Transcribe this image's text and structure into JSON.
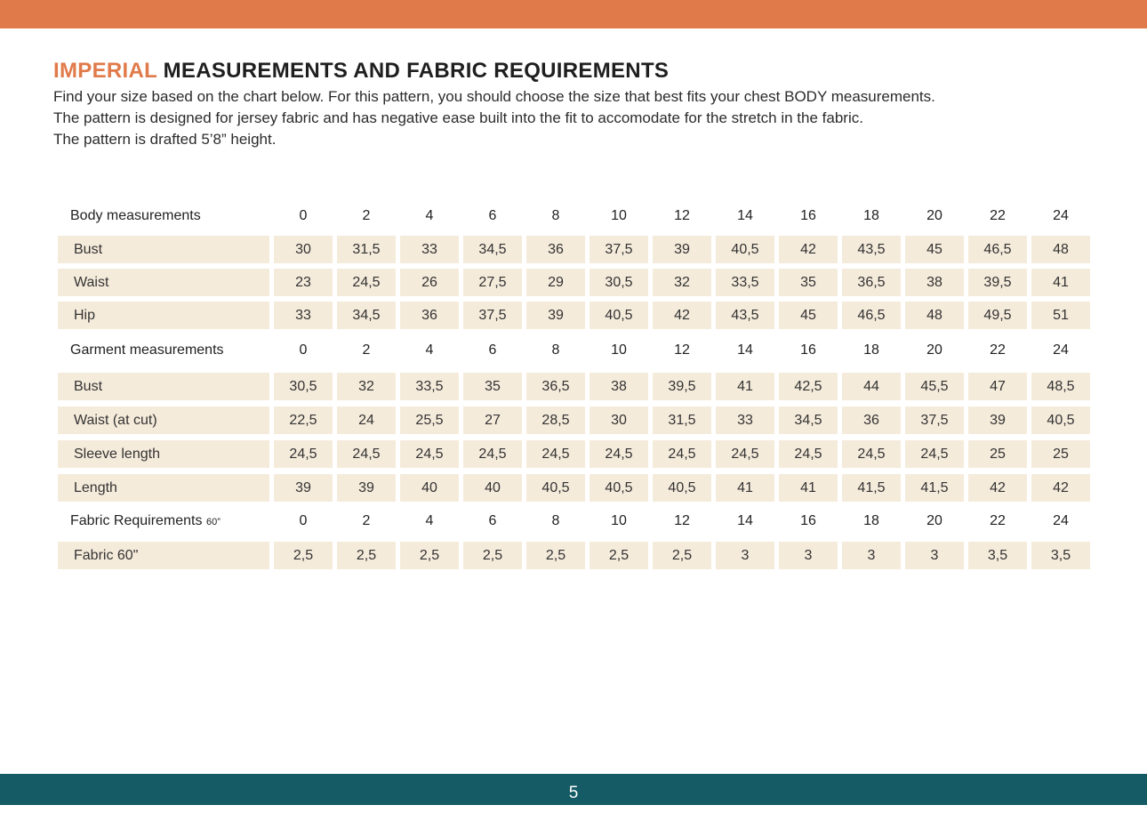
{
  "colors": {
    "top_bar": "#e07a4a",
    "bottom_bar": "#155b66",
    "cell_background": "#f5ebdb",
    "accent": "#e07a4a"
  },
  "title": {
    "accent": "IMPERIAL",
    "rest": " MEASUREMENTS AND FABRIC REQUIREMENTS"
  },
  "intro": [
    "Find your size based on the chart below. For this pattern, you should choose the size that best fits your chest BODY measurements.",
    "The pattern is designed for jersey fabric and has negative ease built into the fit to accomodate for the stretch in the fabric.",
    "The pattern is drafted 5’8” height."
  ],
  "sizes": [
    "0",
    "2",
    "4",
    "6",
    "8",
    "10",
    "12",
    "14",
    "16",
    "18",
    "20",
    "22",
    "24"
  ],
  "sections": [
    {
      "header": "Body measurements",
      "header_suffix": "",
      "rows": [
        {
          "label": "Bust",
          "values": [
            "30",
            "31,5",
            "33",
            "34,5",
            "36",
            "37,5",
            "39",
            "40,5",
            "42",
            "43,5",
            "45",
            "46,5",
            "48"
          ]
        },
        {
          "label": "Waist",
          "values": [
            "23",
            "24,5",
            "26",
            "27,5",
            "29",
            "30,5",
            "32",
            "33,5",
            "35",
            "36,5",
            "38",
            "39,5",
            "41"
          ]
        },
        {
          "label": "Hip",
          "values": [
            "33",
            "34,5",
            "36",
            "37,5",
            "39",
            "40,5",
            "42",
            "43,5",
            "45",
            "46,5",
            "48",
            "49,5",
            "51"
          ]
        }
      ]
    },
    {
      "header": "Garment measurements",
      "header_suffix": "",
      "rows": [
        {
          "label": "Bust",
          "values": [
            "30,5",
            "32",
            "33,5",
            "35",
            "36,5",
            "38",
            "39,5",
            "41",
            "42,5",
            "44",
            "45,5",
            "47",
            "48,5"
          ]
        },
        {
          "label": "Waist  (at cut)",
          "values": [
            "22,5",
            "24",
            "25,5",
            "27",
            "28,5",
            "30",
            "31,5",
            "33",
            "34,5",
            "36",
            "37,5",
            "39",
            "40,5"
          ]
        },
        {
          "label": "Sleeve length",
          "values": [
            "24,5",
            "24,5",
            "24,5",
            "24,5",
            "24,5",
            "24,5",
            "24,5",
            "24,5",
            "24,5",
            "24,5",
            "24,5",
            "25",
            "25"
          ]
        },
        {
          "label": "Length",
          "values": [
            "39",
            "39",
            "40",
            "40",
            "40,5",
            "40,5",
            "40,5",
            "41",
            "41",
            "41,5",
            "41,5",
            "42",
            "42"
          ]
        }
      ]
    },
    {
      "header": "Fabric Requirements",
      "header_suffix": "60”",
      "rows": [
        {
          "label": "Fabric 60\"",
          "values": [
            "2,5",
            "2,5",
            "2,5",
            "2,5",
            "2,5",
            "2,5",
            "2,5",
            "3",
            "3",
            "3",
            "3",
            "3,5",
            "3,5"
          ]
        }
      ]
    }
  ],
  "page_number": "5"
}
